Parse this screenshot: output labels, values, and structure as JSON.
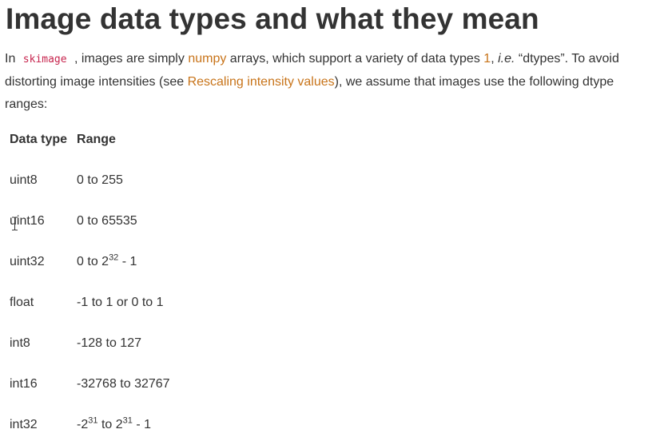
{
  "heading": "Image data types and what they mean",
  "intro": {
    "t1": "In ",
    "code": "skimage",
    "t2": " , images are simply ",
    "link_numpy": "numpy",
    "t3": " arrays, which support a variety of data types ",
    "link_footnote": "1",
    "t4": ", ",
    "ie": "i.e.",
    "t5": " “dtypes”. To avoid distorting image intensities (see ",
    "link_rescaling": "Rescaling intensity values",
    "t6": "), we assume that images use the following dtype ranges:"
  },
  "table": {
    "headers": [
      "Data type",
      "Range"
    ],
    "rows": [
      {
        "type": "uint8",
        "range": "0 to 255"
      },
      {
        "type": "uint16",
        "range": "0 to 65535"
      },
      {
        "type": "uint32",
        "r_a": "0 to 2",
        "r_sup": "32",
        "r_b": " - 1"
      },
      {
        "type": "float",
        "range": "-1 to 1 or 0 to 1"
      },
      {
        "type": "int8",
        "range": "-128 to 127"
      },
      {
        "type": "int16",
        "range": "-32768 to 32767"
      },
      {
        "type": "int32",
        "r_a": "-2",
        "r_sup": "31",
        "r_b": " to 2",
        "r_sup2": "31",
        "r_c": " - 1"
      }
    ]
  },
  "colors": {
    "text": "#333333",
    "link": "#c8741a",
    "code": "#c7254e",
    "background": "#ffffff"
  },
  "icons": {
    "cursor": "text-cursor-icon"
  }
}
